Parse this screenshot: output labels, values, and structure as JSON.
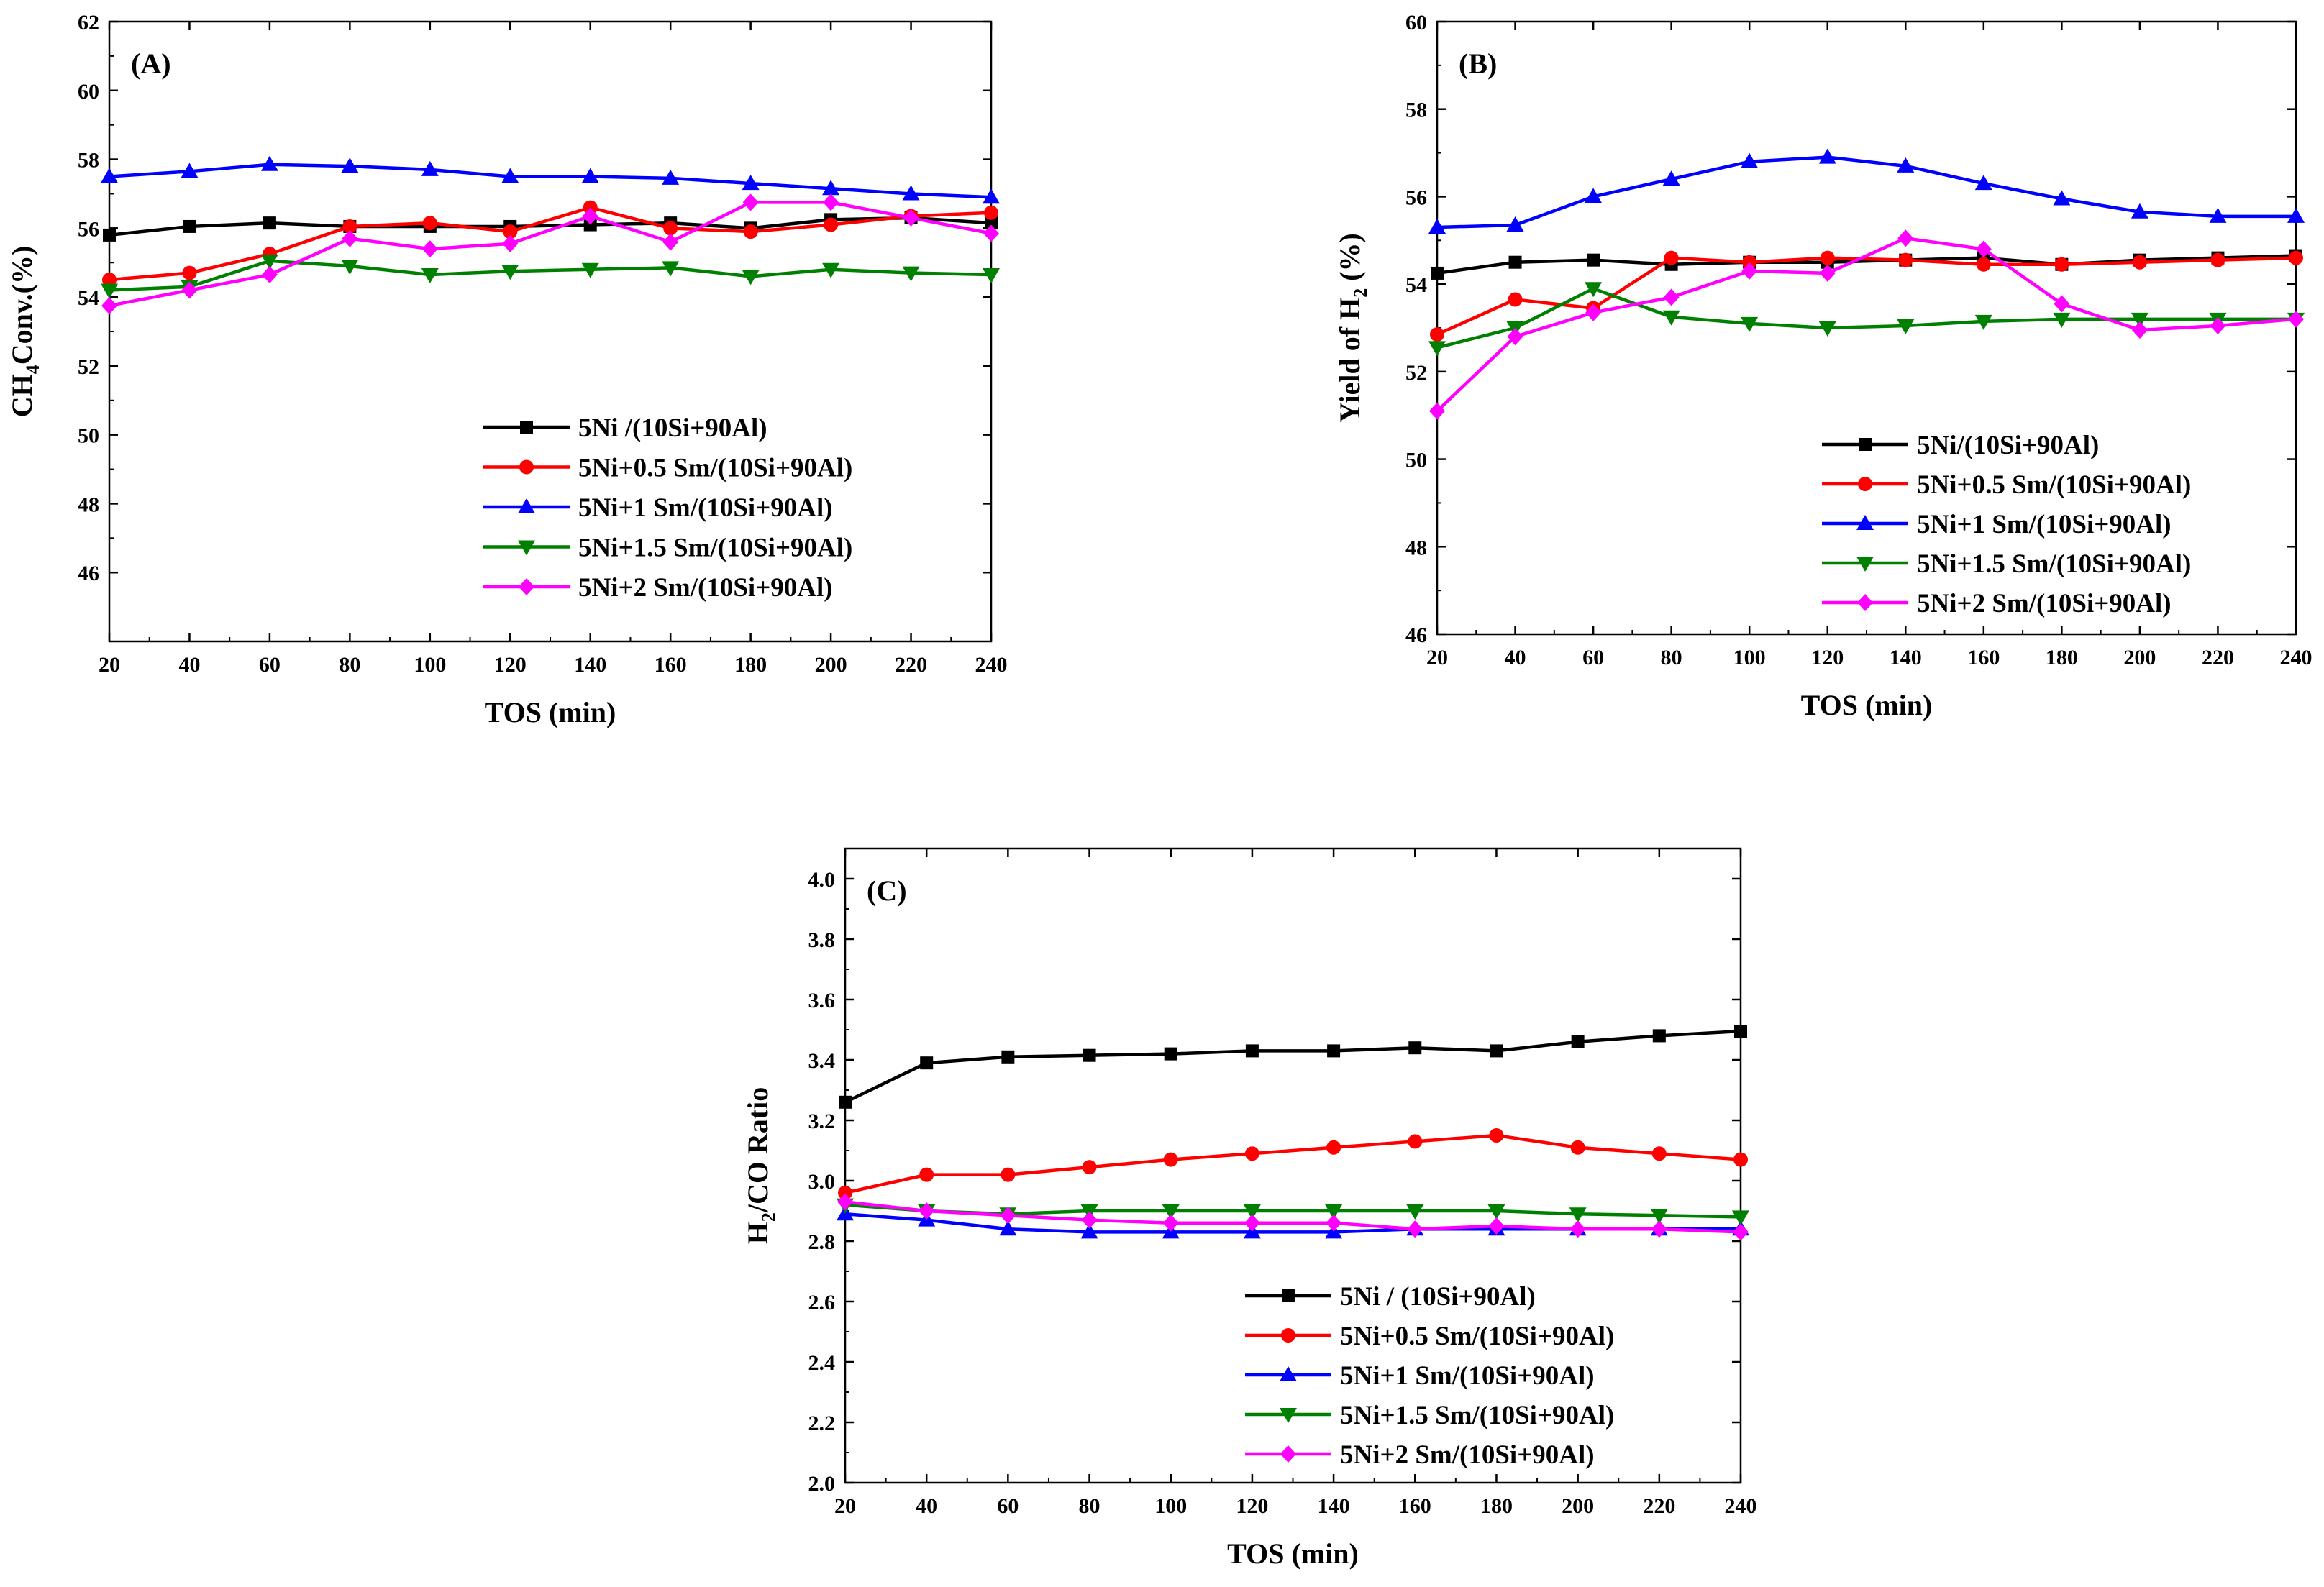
{
  "figure": {
    "panels": [
      "A",
      "B",
      "C"
    ]
  },
  "chart_data": [
    {
      "id": "A",
      "type": "line",
      "panel_label": "(A)",
      "xlabel": "TOS (min)",
      "ylabel_main": "CH",
      "ylabel_sub": "4",
      "ylabel_rest": "Conv.(%)",
      "xlim": [
        20,
        240
      ],
      "ylim": [
        44,
        62
      ],
      "xticks": [
        20,
        40,
        60,
        80,
        100,
        120,
        140,
        160,
        180,
        200,
        220,
        240
      ],
      "yticks": [
        46,
        48,
        50,
        52,
        54,
        56,
        58,
        60,
        62
      ],
      "yticks_format": "int",
      "legend_position": "center-right",
      "x": [
        20,
        40,
        60,
        80,
        100,
        120,
        140,
        160,
        180,
        200,
        220,
        240
      ],
      "series": [
        {
          "name": "5Ni /(10Si+90Al)",
          "color": "#000000",
          "marker": "square",
          "values": [
            55.8,
            56.05,
            56.15,
            56.05,
            56.05,
            56.05,
            56.1,
            56.15,
            56.0,
            56.25,
            56.3,
            56.15
          ]
        },
        {
          "name": "5Ni+0.5 Sm/(10Si+90Al)",
          "color": "#ff0000",
          "marker": "circle",
          "values": [
            54.5,
            54.7,
            55.25,
            56.05,
            56.15,
            55.9,
            56.6,
            56.0,
            55.9,
            56.1,
            56.35,
            56.45
          ]
        },
        {
          "name": "5Ni+1 Sm/(10Si+90Al)",
          "color": "#0000ff",
          "marker": "triangle-up",
          "values": [
            57.5,
            57.65,
            57.85,
            57.8,
            57.7,
            57.5,
            57.5,
            57.45,
            57.3,
            57.15,
            57.0,
            56.9
          ]
        },
        {
          "name": "5Ni+1.5 Sm/(10Si+90Al)",
          "color": "#008000",
          "marker": "triangle-down",
          "values": [
            54.2,
            54.3,
            55.05,
            54.9,
            54.65,
            54.75,
            54.8,
            54.85,
            54.6,
            54.8,
            54.7,
            54.65
          ]
        },
        {
          "name": "5Ni+2 Sm/(10Si+90Al)",
          "color": "#ff00ff",
          "marker": "diamond",
          "values": [
            53.75,
            54.2,
            54.65,
            55.7,
            55.4,
            55.55,
            56.35,
            55.6,
            56.75,
            56.75,
            56.3,
            55.85
          ]
        }
      ]
    },
    {
      "id": "B",
      "type": "line",
      "panel_label": "(B)",
      "xlabel": "TOS (min)",
      "ylabel_main": "Yield of H",
      "ylabel_sub": "2",
      "ylabel_rest": " (%)",
      "xlim": [
        20,
        240
      ],
      "ylim": [
        46,
        60
      ],
      "xticks": [
        20,
        40,
        60,
        80,
        100,
        120,
        140,
        160,
        180,
        200,
        220,
        240
      ],
      "yticks": [
        46,
        48,
        50,
        52,
        54,
        56,
        58,
        60
      ],
      "yticks_format": "int",
      "legend_position": "center-right",
      "x": [
        20,
        40,
        60,
        80,
        100,
        120,
        140,
        160,
        180,
        200,
        220,
        240
      ],
      "series": [
        {
          "name": "5Ni/(10Si+90Al)",
          "color": "#000000",
          "marker": "square",
          "values": [
            54.25,
            54.5,
            54.55,
            54.45,
            54.5,
            54.5,
            54.55,
            54.6,
            54.45,
            54.55,
            54.6,
            54.65
          ]
        },
        {
          "name": "5Ni+0.5 Sm/(10Si+90Al)",
          "color": "#ff0000",
          "marker": "circle",
          "values": [
            52.85,
            53.65,
            53.45,
            54.6,
            54.5,
            54.6,
            54.55,
            54.45,
            54.45,
            54.5,
            54.55,
            54.6
          ]
        },
        {
          "name": "5Ni+1 Sm/(10Si+90Al)",
          "color": "#0000ff",
          "marker": "triangle-up",
          "values": [
            55.3,
            55.35,
            56.0,
            56.4,
            56.8,
            56.9,
            56.7,
            56.3,
            55.95,
            55.65,
            55.55,
            55.55
          ]
        },
        {
          "name": "5Ni+1.5 Sm/(10Si+90Al)",
          "color": "#008000",
          "marker": "triangle-down",
          "values": [
            52.55,
            53.0,
            53.9,
            53.25,
            53.1,
            53.0,
            53.05,
            53.15,
            53.2,
            53.2,
            53.2,
            53.2
          ]
        },
        {
          "name": "5Ni+2 Sm/(10Si+90Al)",
          "color": "#ff00ff",
          "marker": "diamond",
          "values": [
            51.1,
            52.8,
            53.35,
            53.7,
            54.3,
            54.25,
            55.05,
            54.8,
            53.55,
            52.95,
            53.05,
            53.2
          ]
        }
      ]
    },
    {
      "id": "C",
      "type": "line",
      "panel_label": "(C)",
      "xlabel": "TOS (min)",
      "ylabel_main": "H",
      "ylabel_sub": "2",
      "ylabel_rest": "/CO Ratio",
      "xlim": [
        20,
        240
      ],
      "ylim": [
        2.0,
        4.1
      ],
      "xticks": [
        20,
        40,
        60,
        80,
        100,
        120,
        140,
        160,
        180,
        200,
        220,
        240
      ],
      "yticks": [
        2.0,
        2.2,
        2.4,
        2.6,
        2.8,
        3.0,
        3.2,
        3.4,
        3.6,
        3.8,
        4.0
      ],
      "yticks_format": "fixed1",
      "legend_position": "bottom-right",
      "x": [
        20,
        40,
        60,
        80,
        100,
        120,
        140,
        160,
        180,
        200,
        220,
        240
      ],
      "series": [
        {
          "name": "5Ni / (10Si+90Al)",
          "color": "#000000",
          "marker": "square",
          "values": [
            3.26,
            3.39,
            3.41,
            3.415,
            3.42,
            3.43,
            3.43,
            3.44,
            3.43,
            3.46,
            3.48,
            3.495
          ]
        },
        {
          "name": "5Ni+0.5 Sm/(10Si+90Al)",
          "color": "#ff0000",
          "marker": "circle",
          "values": [
            2.96,
            3.02,
            3.02,
            3.045,
            3.07,
            3.09,
            3.11,
            3.13,
            3.15,
            3.11,
            3.09,
            3.07
          ]
        },
        {
          "name": "5Ni+1 Sm/(10Si+90Al)",
          "color": "#0000ff",
          "marker": "triangle-up",
          "values": [
            2.89,
            2.87,
            2.84,
            2.83,
            2.83,
            2.83,
            2.83,
            2.84,
            2.84,
            2.84,
            2.84,
            2.84
          ]
        },
        {
          "name": "5Ni+1.5 Sm/(10Si+90Al)",
          "color": "#008000",
          "marker": "triangle-down",
          "values": [
            2.92,
            2.9,
            2.89,
            2.9,
            2.9,
            2.9,
            2.9,
            2.9,
            2.9,
            2.89,
            2.885,
            2.88
          ]
        },
        {
          "name": "5Ni+2 Sm/(10Si+90Al)",
          "color": "#ff00ff",
          "marker": "diamond",
          "values": [
            2.93,
            2.9,
            2.885,
            2.87,
            2.86,
            2.86,
            2.86,
            2.84,
            2.85,
            2.84,
            2.84,
            2.83
          ]
        }
      ]
    }
  ]
}
